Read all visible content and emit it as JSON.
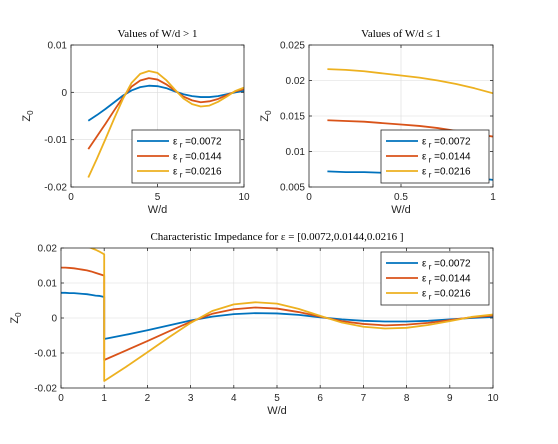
{
  "colors": {
    "s1": "#0072BD",
    "s2": "#D95319",
    "s3": "#EDB120"
  },
  "legend_labels": [
    "ε r =0.0072",
    "ε r =0.0144",
    "ε r =0.0216"
  ],
  "chart_data": [
    {
      "id": "gt1",
      "type": "line",
      "title": "Values of W/d > 1",
      "xlabel": "W/d",
      "ylabel": "Z0",
      "xlim": [
        0,
        10
      ],
      "ylim": [
        -0.02,
        0.01
      ],
      "xticks": [
        0,
        5,
        10
      ],
      "xtick_labels": [
        "0",
        "5",
        "10"
      ],
      "yticks": [
        -0.02,
        -0.01,
        0,
        0.01
      ],
      "ytick_labels": [
        "-0.02",
        "-0.01",
        "0",
        "0.01"
      ],
      "grid": true,
      "legend_position": "bottom-right",
      "series": [
        {
          "name": "ε r =0.0072",
          "x": [
            1,
            1.5,
            2,
            2.5,
            3,
            3.5,
            4,
            4.5,
            5,
            5.5,
            6,
            6.5,
            7,
            7.5,
            8,
            8.5,
            9,
            9.5,
            10
          ],
          "y": [
            -0.006,
            -0.0048,
            -0.0035,
            -0.0021,
            -0.0007,
            0.0004,
            0.0011,
            0.0014,
            0.0013,
            0.0009,
            0.0002,
            -0.0004,
            -0.0008,
            -0.001,
            -0.001,
            -0.0008,
            -0.0004,
            0,
            0.0003
          ]
        },
        {
          "name": "ε r =0.0144",
          "x": [
            1,
            1.5,
            2,
            2.5,
            3,
            3.5,
            4,
            4.5,
            5,
            5.5,
            6,
            6.5,
            7,
            7.5,
            8,
            8.5,
            9,
            9.5,
            10
          ],
          "y": [
            -0.012,
            -0.0093,
            -0.0066,
            -0.0038,
            -0.0011,
            0.0012,
            0.0025,
            0.003,
            0.0027,
            0.0017,
            0.0004,
            -0.0009,
            -0.0017,
            -0.0021,
            -0.0019,
            -0.0014,
            -0.0006,
            0.0002,
            0.0007
          ]
        },
        {
          "name": "ε r =0.0216",
          "x": [
            1,
            1.5,
            2,
            2.5,
            3,
            3.5,
            4,
            4.5,
            5,
            5.5,
            6,
            6.5,
            7,
            7.5,
            8,
            8.5,
            9,
            9.5,
            10
          ],
          "y": [
            -0.018,
            -0.014,
            -0.0098,
            -0.0055,
            -0.0014,
            0.002,
            0.0039,
            0.0045,
            0.0041,
            0.0026,
            0.0006,
            -0.0013,
            -0.0025,
            -0.003,
            -0.0028,
            -0.002,
            -0.0009,
            0.0003,
            0.001
          ]
        }
      ]
    },
    {
      "id": "le1",
      "type": "line",
      "title": "Values of W/d ≤ 1",
      "xlabel": "W/d",
      "ylabel": "Z0",
      "xlim": [
        0,
        1
      ],
      "ylim": [
        0.005,
        0.025
      ],
      "xticks": [
        0,
        0.5,
        1
      ],
      "xtick_labels": [
        "0",
        "0.5",
        "1"
      ],
      "yticks": [
        0.005,
        0.01,
        0.015,
        0.02,
        0.025
      ],
      "ytick_labels": [
        "0.005",
        "0.01",
        "0.015",
        "0.02",
        "0.025"
      ],
      "grid": true,
      "legend_position": "bottom-right",
      "series": [
        {
          "name": "ε r =0.0072",
          "x": [
            0.1,
            0.2,
            0.3,
            0.4,
            0.5,
            0.6,
            0.7,
            0.8,
            0.9,
            1.0
          ],
          "y": [
            0.0072,
            0.0071,
            0.0071,
            0.007,
            0.0069,
            0.0068,
            0.0066,
            0.0064,
            0.0063,
            0.006
          ]
        },
        {
          "name": "ε r =0.0144",
          "x": [
            0.1,
            0.2,
            0.3,
            0.4,
            0.5,
            0.6,
            0.7,
            0.8,
            0.9,
            1.0
          ],
          "y": [
            0.0144,
            0.0143,
            0.0142,
            0.014,
            0.0138,
            0.0136,
            0.0133,
            0.0129,
            0.0125,
            0.0121
          ]
        },
        {
          "name": "ε r =0.0216",
          "x": [
            0.1,
            0.2,
            0.3,
            0.4,
            0.5,
            0.6,
            0.7,
            0.8,
            0.9,
            1.0
          ],
          "y": [
            0.0216,
            0.0215,
            0.0213,
            0.021,
            0.0207,
            0.0204,
            0.02,
            0.0195,
            0.0189,
            0.0182
          ]
        }
      ]
    },
    {
      "id": "all",
      "type": "line",
      "title": "Characteristic Impedance for ε = [0.0072,0.0144,0.0216 ]",
      "xlabel": "W/d",
      "ylabel": "Z0",
      "xlim": [
        0,
        10
      ],
      "ylim": [
        -0.02,
        0.02
      ],
      "xticks": [
        0,
        1,
        2,
        3,
        4,
        5,
        6,
        7,
        8,
        9,
        10
      ],
      "xtick_labels": [
        "0",
        "1",
        "2",
        "3",
        "4",
        "5",
        "6",
        "7",
        "8",
        "9",
        "10"
      ],
      "yticks": [
        -0.02,
        -0.01,
        0,
        0.01,
        0.02
      ],
      "ytick_labels": [
        "-0.02",
        "-0.01",
        "0",
        "0.01",
        "0.02"
      ],
      "grid": true,
      "legend_position": "top-right",
      "series": [
        {
          "name": "ε r =0.0072",
          "x": [
            0,
            0.1,
            0.2,
            0.3,
            0.4,
            0.5,
            0.6,
            0.7,
            0.8,
            0.9,
            1.0,
            1.0,
            1.5,
            2,
            2.5,
            3,
            3.5,
            4,
            4.5,
            5,
            5.5,
            6,
            6.5,
            7,
            7.5,
            8,
            8.5,
            9,
            9.5,
            10
          ],
          "y": [
            0.0072,
            0.0072,
            0.0071,
            0.0071,
            0.007,
            0.0069,
            0.0068,
            0.0066,
            0.0064,
            0.0063,
            0.006,
            -0.006,
            -0.0048,
            -0.0035,
            -0.0021,
            -0.0007,
            0.0004,
            0.0011,
            0.0014,
            0.0013,
            0.0009,
            0.0002,
            -0.0004,
            -0.0008,
            -0.001,
            -0.001,
            -0.0008,
            -0.0004,
            0,
            0.0003
          ]
        },
        {
          "name": "ε r =0.0144",
          "x": [
            0,
            0.1,
            0.2,
            0.3,
            0.4,
            0.5,
            0.6,
            0.7,
            0.8,
            0.9,
            1.0,
            1.0,
            1.5,
            2,
            2.5,
            3,
            3.5,
            4,
            4.5,
            5,
            5.5,
            6,
            6.5,
            7,
            7.5,
            8,
            8.5,
            9,
            9.5,
            10
          ],
          "y": [
            0.0144,
            0.0144,
            0.0143,
            0.0142,
            0.014,
            0.0138,
            0.0136,
            0.0133,
            0.0129,
            0.0125,
            0.0121,
            -0.012,
            -0.0093,
            -0.0066,
            -0.0038,
            -0.0011,
            0.0012,
            0.0025,
            0.003,
            0.0027,
            0.0017,
            0.0004,
            -0.0009,
            -0.0017,
            -0.0021,
            -0.0019,
            -0.0014,
            -0.0006,
            0.0002,
            0.0007
          ]
        },
        {
          "name": "ε r =0.0216",
          "x": [
            0,
            0.1,
            0.2,
            0.3,
            0.4,
            0.5,
            0.6,
            0.7,
            0.8,
            0.9,
            1.0,
            1.0,
            1.5,
            2,
            2.5,
            3,
            3.5,
            4,
            4.5,
            5,
            5.5,
            6,
            6.5,
            7,
            7.5,
            8,
            8.5,
            9,
            9.5,
            10
          ],
          "y": [
            0.0216,
            0.0216,
            0.0215,
            0.0213,
            0.021,
            0.0207,
            0.0204,
            0.02,
            0.0195,
            0.0189,
            0.0182,
            -0.018,
            -0.014,
            -0.0098,
            -0.0055,
            -0.0014,
            0.002,
            0.0039,
            0.0045,
            0.0041,
            0.0026,
            0.0006,
            -0.0013,
            -0.0025,
            -0.003,
            -0.0028,
            -0.002,
            -0.0009,
            0.0003,
            0.001
          ]
        }
      ]
    }
  ]
}
